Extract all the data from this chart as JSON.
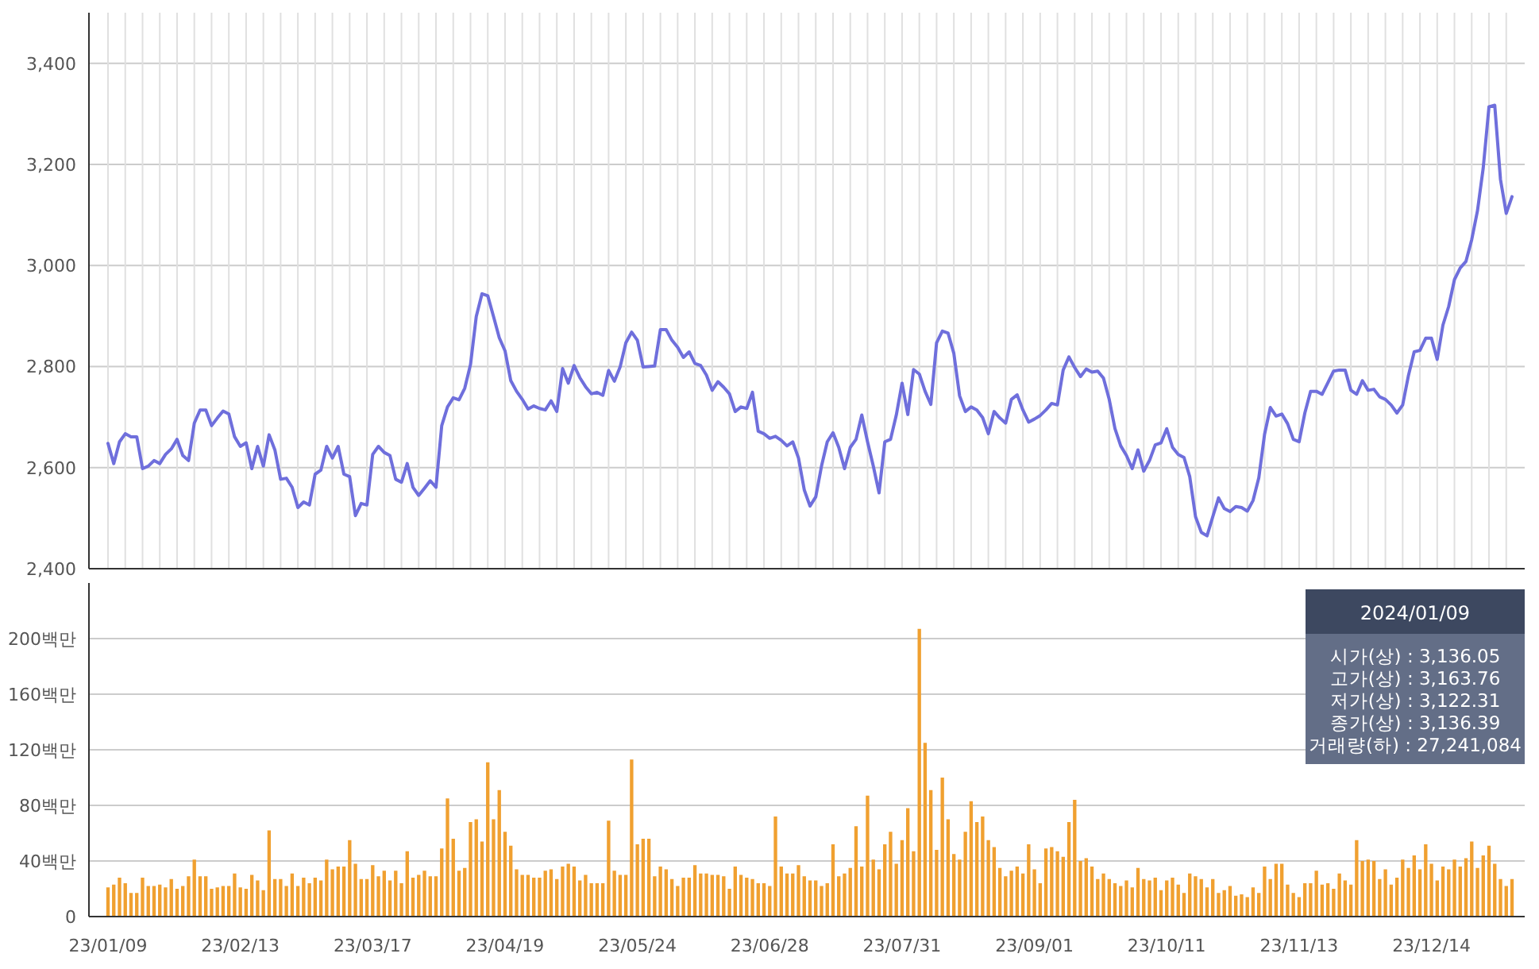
{
  "chart_data": [
    {
      "type": "line",
      "color": "#6f6fdc",
      "grid": true,
      "tick_labels": "y",
      "ylim": [
        2400,
        3500
      ],
      "yticks": [
        {
          "value": 2400,
          "label": "2,400"
        },
        {
          "value": 2600,
          "label": "2,600"
        },
        {
          "value": 2800,
          "label": "2,800"
        },
        {
          "value": 3000,
          "label": "3,000"
        },
        {
          "value": 3200,
          "label": "3,200"
        },
        {
          "value": 3400,
          "label": "3,400"
        }
      ],
      "categories": [
        null,
        null,
        null,
        null,
        null,
        null,
        null,
        null,
        null,
        null,
        null,
        null,
        null,
        null,
        null,
        null,
        null,
        null,
        null,
        null,
        null,
        null,
        null,
        null,
        null,
        null,
        null,
        null,
        null,
        null,
        null,
        null,
        null,
        null,
        null,
        null,
        null,
        null,
        null,
        null,
        null,
        null,
        null,
        null,
        null,
        null,
        null,
        null,
        null,
        null,
        null,
        null,
        null,
        null,
        null,
        null,
        null,
        null,
        null,
        null,
        null,
        null,
        null,
        null,
        null,
        null,
        null,
        null,
        null,
        null,
        null,
        null,
        null,
        null,
        null,
        null,
        null,
        null,
        null,
        null,
        null,
        null,
        null,
        null,
        null,
        null,
        null,
        null,
        null,
        null,
        null,
        null,
        null,
        null,
        null,
        null,
        null,
        null,
        null,
        null,
        null,
        null,
        null,
        null,
        null,
        null,
        null,
        null,
        null,
        null,
        null,
        null,
        null,
        null,
        null,
        null,
        null,
        null,
        null,
        null,
        null,
        null,
        null,
        null,
        null,
        null,
        null,
        null,
        null,
        null,
        null,
        null,
        null,
        null,
        null,
        null,
        null,
        null,
        null,
        null,
        null,
        null,
        null,
        null,
        null,
        null,
        null,
        null,
        null,
        null,
        null,
        null,
        null,
        null,
        null,
        null,
        null,
        null,
        null,
        null,
        null,
        null,
        null,
        null,
        null,
        null,
        null,
        null,
        null,
        null,
        null,
        null,
        null,
        null,
        null,
        null,
        null,
        null,
        null,
        null,
        null,
        null,
        null,
        null,
        null,
        null,
        null,
        null,
        null,
        null,
        null,
        null,
        null,
        null,
        null,
        null,
        null,
        null,
        null,
        null,
        null,
        null,
        null,
        null,
        null,
        null,
        null,
        null,
        null,
        null,
        null,
        null,
        null,
        null,
        null,
        null,
        null,
        null,
        null,
        null,
        null,
        null,
        null,
        null,
        null,
        null,
        null,
        null,
        null,
        null,
        null,
        null,
        null,
        null,
        null,
        null,
        null,
        null,
        null,
        null,
        null,
        null,
        null,
        null,
        null
      ],
      "values": [
        2648,
        2608,
        2651,
        2667,
        2661,
        2661,
        2598,
        2603,
        2614,
        2608,
        2626,
        2637,
        2656,
        2624,
        2614,
        2688,
        2714,
        2714,
        2683,
        2698,
        2712,
        2706,
        2661,
        2642,
        2649,
        2598,
        2642,
        2603,
        2665,
        2635,
        2577,
        2579,
        2561,
        2521,
        2532,
        2526,
        2587,
        2595,
        2642,
        2619,
        2642,
        2587,
        2582,
        2505,
        2529,
        2526,
        2626,
        2642,
        2630,
        2624,
        2577,
        2571,
        2608,
        2561,
        2545,
        2559,
        2574,
        2561,
        2683,
        2720,
        2738,
        2734,
        2757,
        2804,
        2899,
        2944,
        2940,
        2899,
        2857,
        2831,
        2772,
        2751,
        2735,
        2716,
        2722,
        2717,
        2714,
        2732,
        2711,
        2796,
        2767,
        2802,
        2778,
        2760,
        2746,
        2749,
        2743,
        2792,
        2771,
        2799,
        2847,
        2868,
        2852,
        2799,
        2800,
        2801,
        2873,
        2873,
        2852,
        2838,
        2818,
        2829,
        2806,
        2802,
        2783,
        2753,
        2770,
        2759,
        2746,
        2711,
        2720,
        2717,
        2749,
        2672,
        2667,
        2658,
        2662,
        2654,
        2643,
        2651,
        2619,
        2556,
        2524,
        2542,
        2603,
        2651,
        2669,
        2640,
        2598,
        2640,
        2656,
        2704,
        2651,
        2603,
        2550,
        2651,
        2656,
        2704,
        2767,
        2705,
        2794,
        2785,
        2751,
        2725,
        2847,
        2870,
        2866,
        2826,
        2742,
        2711,
        2720,
        2714,
        2699,
        2667,
        2711,
        2698,
        2688,
        2735,
        2744,
        2714,
        2690,
        2696,
        2703,
        2714,
        2727,
        2724,
        2793,
        2819,
        2798,
        2780,
        2795,
        2789,
        2791,
        2777,
        2735,
        2677,
        2643,
        2624,
        2598,
        2635,
        2593,
        2614,
        2645,
        2649,
        2677,
        2640,
        2626,
        2620,
        2582,
        2503,
        2472,
        2465,
        2503,
        2540,
        2519,
        2513,
        2523,
        2521,
        2514,
        2535,
        2580,
        2666,
        2719,
        2702,
        2706,
        2687,
        2656,
        2651,
        2708,
        2751,
        2751,
        2745,
        2768,
        2791,
        2793,
        2793,
        2753,
        2745,
        2772,
        2753,
        2755,
        2740,
        2735,
        2724,
        2708,
        2724,
        2782,
        2829,
        2832,
        2856,
        2856,
        2814,
        2882,
        2919,
        2972,
        2995,
        3008,
        3051,
        3108,
        3193,
        3314,
        3317,
        3170,
        3103,
        3136
      ]
    },
    {
      "type": "bar",
      "color": "#f0a030",
      "grid": "y",
      "ylim": [
        0,
        240
      ],
      "yticks": [
        0,
        {
          "value": 40,
          "label": "40백만"
        },
        {
          "value": 80,
          "label": "80백만"
        },
        {
          "value": 120,
          "label": "120백만"
        },
        {
          "value": 160,
          "label": "160백만"
        },
        {
          "value": 200,
          "label": "200백만"
        }
      ],
      "categories": [
        "23/01/09",
        null,
        null,
        null,
        null,
        null,
        null,
        null,
        null,
        null,
        null,
        null,
        null,
        null,
        null,
        null,
        null,
        null,
        null,
        null,
        null,
        null,
        null,
        "23/02/13",
        null,
        null,
        null,
        null,
        null,
        null,
        null,
        null,
        null,
        null,
        null,
        null,
        null,
        null,
        null,
        null,
        null,
        null,
        null,
        null,
        null,
        null,
        "23/03/17",
        null,
        null,
        null,
        null,
        null,
        null,
        null,
        null,
        null,
        null,
        null,
        null,
        null,
        null,
        null,
        null,
        null,
        null,
        null,
        null,
        null,
        null,
        "23/04/19",
        null,
        null,
        null,
        null,
        null,
        null,
        null,
        null,
        null,
        null,
        null,
        null,
        null,
        null,
        null,
        null,
        null,
        null,
        null,
        null,
        null,
        null,
        "23/05/24",
        null,
        null,
        null,
        null,
        null,
        null,
        null,
        null,
        null,
        null,
        null,
        null,
        null,
        null,
        null,
        null,
        null,
        null,
        null,
        null,
        null,
        null,
        "23/06/28",
        null,
        null,
        null,
        null,
        null,
        null,
        null,
        null,
        null,
        null,
        null,
        null,
        null,
        null,
        null,
        null,
        null,
        null,
        null,
        null,
        null,
        null,
        "23/07/31",
        null,
        null,
        null,
        null,
        null,
        null,
        null,
        null,
        null,
        null,
        null,
        null,
        null,
        null,
        null,
        null,
        null,
        null,
        null,
        null,
        null,
        null,
        "23/09/01",
        null,
        null,
        null,
        null,
        null,
        null,
        null,
        null,
        null,
        null,
        null,
        null,
        null,
        null,
        null,
        null,
        null,
        null,
        null,
        null,
        null,
        null,
        "23/10/11",
        null,
        null,
        null,
        null,
        null,
        null,
        null,
        null,
        null,
        null,
        null,
        null,
        null,
        null,
        null,
        null,
        null,
        null,
        null,
        null,
        null,
        null,
        "23/11/13",
        null,
        null,
        null,
        null,
        null,
        null,
        null,
        null,
        null,
        null,
        null,
        null,
        null,
        null,
        null,
        null,
        null,
        null,
        null,
        null,
        null,
        null,
        "23/12/14",
        null,
        null,
        null,
        null,
        null,
        null,
        null,
        null,
        null,
        null,
        null,
        null,
        null,
        null
      ],
      "values": [
        21,
        23,
        28,
        24,
        17,
        17,
        28,
        22,
        22,
        23,
        21,
        27,
        20,
        22,
        29,
        41,
        29,
        29,
        20,
        21,
        22,
        22,
        31,
        21,
        20,
        30,
        26,
        19,
        62,
        27,
        27,
        22,
        31,
        22,
        28,
        24,
        28,
        26,
        41,
        34,
        36,
        36,
        55,
        38,
        27,
        27,
        37,
        29,
        33,
        26,
        33,
        24,
        47,
        28,
        30,
        33,
        29,
        29,
        49,
        85,
        56,
        33,
        35,
        68,
        70,
        54,
        111,
        70,
        91,
        61,
        51,
        34,
        30,
        30,
        28,
        28,
        33,
        34,
        27,
        36,
        38,
        36,
        26,
        30,
        24,
        24,
        24,
        69,
        33,
        30,
        30,
        113,
        52,
        56,
        56,
        29,
        36,
        34,
        27,
        22,
        28,
        28,
        37,
        31,
        31,
        30,
        30,
        29,
        20,
        36,
        30,
        28,
        27,
        24,
        24,
        22,
        72,
        36,
        31,
        31,
        37,
        29,
        26,
        26,
        22,
        24,
        52,
        29,
        31,
        35,
        65,
        36,
        87,
        41,
        34,
        52,
        61,
        38,
        55,
        78,
        47,
        207,
        125,
        91,
        48,
        100,
        70,
        45,
        41,
        61,
        83,
        68,
        72,
        55,
        50,
        35,
        29,
        33,
        36,
        31,
        52,
        34,
        24,
        49,
        50,
        47,
        43,
        68,
        84,
        40,
        42,
        36,
        27,
        31,
        27,
        24,
        22,
        26,
        21,
        35,
        27,
        26,
        28,
        19,
        26,
        28,
        23,
        17,
        31,
        29,
        27,
        21,
        27,
        17,
        19,
        22,
        15,
        16,
        14,
        21,
        17,
        36,
        27,
        38,
        38,
        23,
        17,
        14,
        24,
        24,
        33,
        23,
        24,
        20,
        31,
        26,
        23,
        55,
        40,
        41,
        40,
        27,
        34,
        23,
        28,
        41,
        35,
        44,
        34,
        52,
        38,
        26,
        36,
        34,
        41,
        36,
        42,
        54,
        35,
        44,
        51,
        38,
        27,
        22,
        27
      ],
      "annotations": [
        "2024/01/09",
        "시가(상) : 3,136.05",
        "고가(상) : 3,163.76",
        "저가(상) : 3,122.31",
        "종가(상) : 3,136.39",
        "거래량(하) : 27,241,084"
      ]
    }
  ]
}
